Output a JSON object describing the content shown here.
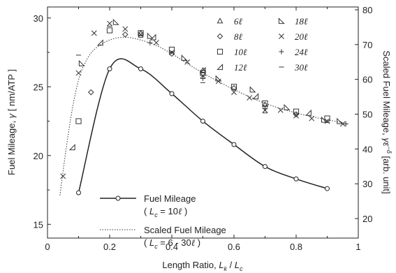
{
  "chart_data": {
    "type": "scatter",
    "xlabel": "Length Ratio, L_k / L_c",
    "ylabel_left": "Fuel Mileage, γ [ nm/ATP ]",
    "ylabel_right": "Scaled Fuel Mileage, γε^-δ [arb. unit]",
    "xlim": [
      0,
      1
    ],
    "ylim_left": [
      14,
      30.8
    ],
    "ylim_right": [
      14.4,
      80.8
    ],
    "xticks": [
      "0",
      "0.2",
      "0.4",
      "0.6",
      "0.8",
      "1"
    ],
    "yticks_left": [
      "15",
      "20",
      "25",
      "30"
    ],
    "yticks_right": [
      "20",
      "30",
      "40",
      "50",
      "60",
      "70",
      "80"
    ],
    "grid": false,
    "line_legend": [
      {
        "label": "Fuel Mileage",
        "sub": "( L_c = 10ℓ )"
      },
      {
        "label": "Scaled Fuel Mileage",
        "sub": "( L_c = 6 - 30ℓ )"
      }
    ],
    "fuel_mileage": {
      "name": "Fuel Mileage",
      "x": [
        0.1,
        0.2,
        0.3,
        0.4,
        0.5,
        0.6,
        0.7,
        0.8,
        0.9
      ],
      "y": [
        17.3,
        26.3,
        26.3,
        24.5,
        22.5,
        20.8,
        19.2,
        18.3,
        17.6
      ]
    },
    "scaled_curve": {
      "name": "Scaled Fuel Mileage",
      "x": [
        0.04,
        0.06,
        0.08,
        0.1,
        0.12,
        0.15,
        0.2,
        0.25,
        0.3,
        0.35,
        0.4,
        0.5,
        0.6,
        0.7,
        0.8,
        0.9,
        0.95
      ],
      "y": [
        17.1,
        20.5,
        23.4,
        25.5,
        26.7,
        27.7,
        28.4,
        28.6,
        28.4,
        28.0,
        27.4,
        26.0,
        24.8,
        23.8,
        23.1,
        22.6,
        22.4
      ]
    },
    "marker_series": [
      {
        "name": "6ℓ",
        "symbol": "tri-up",
        "points": [
          [
            0.3,
            28.9
          ],
          [
            0.5,
            26.2
          ],
          [
            0.7,
            23.7
          ]
        ]
      },
      {
        "name": "8ℓ",
        "symbol": "diamond",
        "points": [
          [
            0.14,
            24.6
          ],
          [
            0.25,
            28.8
          ],
          [
            0.4,
            27.4
          ],
          [
            0.6,
            24.9
          ],
          [
            0.8,
            23.0
          ]
        ]
      },
      {
        "name": "10ℓ",
        "symbol": "square",
        "points": [
          [
            0.1,
            22.5
          ],
          [
            0.2,
            29.1
          ],
          [
            0.3,
            28.9
          ],
          [
            0.4,
            27.7
          ],
          [
            0.5,
            26.0
          ],
          [
            0.6,
            25.0
          ],
          [
            0.7,
            23.8
          ],
          [
            0.8,
            23.2
          ],
          [
            0.9,
            22.7
          ]
        ]
      },
      {
        "name": "12ℓ",
        "symbol": "tri-ul",
        "points": [
          [
            0.08,
            20.6
          ],
          [
            0.17,
            28.2
          ],
          [
            0.34,
            28.6
          ],
          [
            0.5,
            26.2
          ],
          [
            0.67,
            24.3
          ],
          [
            0.84,
            23.1
          ]
        ]
      },
      {
        "name": "18ℓ",
        "symbol": "tri-ur",
        "points": [
          [
            0.11,
            26.7
          ],
          [
            0.22,
            29.7
          ],
          [
            0.33,
            28.7
          ],
          [
            0.44,
            27.1
          ],
          [
            0.55,
            25.6
          ],
          [
            0.66,
            24.8
          ],
          [
            0.77,
            23.5
          ],
          [
            0.89,
            22.6
          ],
          [
            0.94,
            22.5
          ]
        ]
      },
      {
        "name": "20ℓ",
        "symbol": "x",
        "points": [
          [
            0.05,
            18.5
          ],
          [
            0.1,
            26.0
          ],
          [
            0.15,
            28.9
          ],
          [
            0.2,
            29.6
          ],
          [
            0.25,
            29.2
          ],
          [
            0.3,
            28.8
          ],
          [
            0.35,
            28.2
          ],
          [
            0.4,
            27.5
          ],
          [
            0.45,
            26.8
          ],
          [
            0.5,
            25.8
          ],
          [
            0.55,
            25.4
          ],
          [
            0.6,
            24.6
          ],
          [
            0.65,
            24.2
          ],
          [
            0.7,
            23.3
          ],
          [
            0.75,
            23.3
          ],
          [
            0.8,
            22.9
          ],
          [
            0.85,
            22.7
          ],
          [
            0.9,
            22.5
          ],
          [
            0.95,
            22.3
          ]
        ]
      },
      {
        "name": "24ℓ",
        "symbol": "plus",
        "points": [
          [
            0.33,
            28.2
          ],
          [
            0.5,
            25.6
          ],
          [
            0.7,
            23.4
          ],
          [
            0.96,
            22.3
          ]
        ]
      },
      {
        "name": "30ℓ",
        "symbol": "minus",
        "points": [
          [
            0.1,
            27.3
          ],
          [
            0.2,
            29.4
          ],
          [
            0.3,
            28.6
          ],
          [
            0.5,
            25.3
          ],
          [
            0.7,
            23.1
          ],
          [
            0.9,
            22.4
          ]
        ]
      }
    ]
  }
}
